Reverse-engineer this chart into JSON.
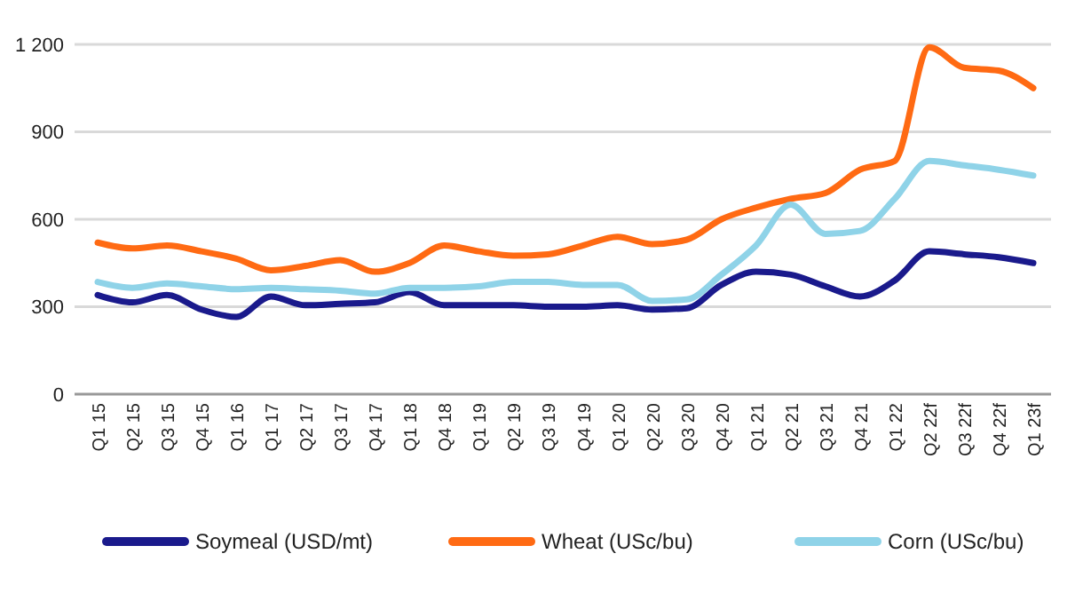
{
  "chart_data": {
    "type": "line",
    "categories": [
      "Q1 15",
      "Q2 15",
      "Q3 15",
      "Q4 15",
      "Q1 16",
      "Q1 17",
      "Q2 17",
      "Q3 17",
      "Q4 17",
      "Q1 18",
      "Q4 18",
      "Q1 19",
      "Q2 19",
      "Q3 19",
      "Q4 19",
      "Q1 20",
      "Q2 20",
      "Q3 20",
      "Q4 20",
      "Q1 21",
      "Q2 21",
      "Q3 21",
      "Q4 21",
      "Q1 22",
      "Q2 22f",
      "Q3 22f",
      "Q4 22f",
      "Q1 23f"
    ],
    "series": [
      {
        "name": "Soymeal (USD/mt)",
        "color": "#1a1a8c",
        "values": [
          340,
          315,
          340,
          290,
          265,
          335,
          305,
          310,
          315,
          350,
          305,
          305,
          305,
          300,
          300,
          305,
          290,
          295,
          375,
          420,
          410,
          370,
          335,
          390,
          490,
          480,
          470,
          450
        ]
      },
      {
        "name": "Wheat (USc/bu)",
        "color": "#ff6a13",
        "values": [
          520,
          500,
          510,
          490,
          465,
          425,
          440,
          460,
          420,
          450,
          510,
          490,
          475,
          480,
          510,
          540,
          515,
          530,
          600,
          640,
          670,
          690,
          770,
          800,
          1190,
          1120,
          1110,
          1050
        ]
      },
      {
        "name": "Corn (USc/bu)",
        "color": "#8fd3e8",
        "values": [
          385,
          365,
          380,
          370,
          360,
          365,
          360,
          355,
          345,
          365,
          365,
          370,
          385,
          385,
          375,
          375,
          320,
          325,
          410,
          510,
          650,
          550,
          560,
          670,
          800,
          785,
          770,
          750
        ]
      }
    ],
    "ylim": [
      0,
      1200
    ],
    "yticks": [
      0,
      300,
      600,
      900,
      {
        "value": 1200,
        "label": "1 200"
      }
    ],
    "grid": "y",
    "legend": "bottom",
    "line_style": "solid",
    "marker": "none"
  }
}
